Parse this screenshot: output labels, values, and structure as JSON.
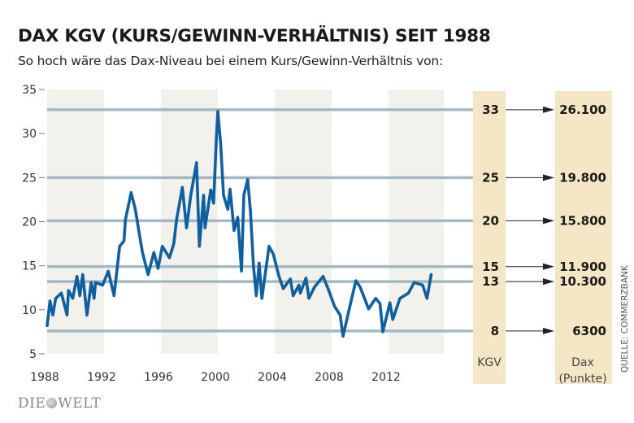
{
  "chart_data": {
    "type": "line",
    "title": "DAX KGV (KURS/GEWINN-VERHÄLTNIS) SEIT 1988",
    "subtitle": "So hoch wäre das Dax-Niveau bei einem Kurs/Gewinn-Verhältnis von:",
    "xlim": [
      1988,
      2016
    ],
    "ylim": [
      5,
      35
    ],
    "yticks": [
      35,
      30,
      25,
      20,
      15,
      10,
      5
    ],
    "xticks": [
      1988,
      1992,
      1996,
      2000,
      2004,
      2008,
      2012
    ],
    "shaded_periods": [
      [
        1988,
        1992
      ],
      [
        1996,
        2000
      ],
      [
        2004,
        2008
      ],
      [
        2012,
        2015.9
      ]
    ],
    "series": [
      {
        "name": "DAX KGV",
        "color": "#105f9e",
        "points": [
          [
            1988.0,
            8.2
          ],
          [
            1988.2,
            11.0
          ],
          [
            1988.4,
            9.4
          ],
          [
            1988.6,
            11.3
          ],
          [
            1989.0,
            11.9
          ],
          [
            1989.4,
            9.4
          ],
          [
            1989.5,
            12.2
          ],
          [
            1989.8,
            11.3
          ],
          [
            1990.1,
            13.8
          ],
          [
            1990.3,
            11.6
          ],
          [
            1990.5,
            14.0
          ],
          [
            1990.8,
            9.4
          ],
          [
            1991.1,
            13.1
          ],
          [
            1991.3,
            11.3
          ],
          [
            1991.4,
            13.1
          ],
          [
            1991.9,
            12.8
          ],
          [
            1992.3,
            14.4
          ],
          [
            1992.7,
            11.6
          ],
          [
            1993.1,
            17.2
          ],
          [
            1993.4,
            17.8
          ],
          [
            1993.5,
            20.2
          ],
          [
            1993.9,
            23.3
          ],
          [
            1994.2,
            21.4
          ],
          [
            1994.5,
            18.4
          ],
          [
            1994.7,
            16.5
          ],
          [
            1995.1,
            14.0
          ],
          [
            1995.5,
            16.5
          ],
          [
            1995.8,
            14.7
          ],
          [
            1996.1,
            17.2
          ],
          [
            1996.6,
            15.9
          ],
          [
            1996.9,
            17.5
          ],
          [
            1997.1,
            20.2
          ],
          [
            1997.5,
            23.9
          ],
          [
            1997.8,
            19.3
          ],
          [
            1998.1,
            23.0
          ],
          [
            1998.5,
            26.7
          ],
          [
            1998.7,
            17.2
          ],
          [
            1999.0,
            23.0
          ],
          [
            1999.1,
            19.3
          ],
          [
            1999.5,
            23.6
          ],
          [
            1999.7,
            22.1
          ],
          [
            1999.9,
            29.7
          ],
          [
            2000.0,
            32.5
          ],
          [
            2000.2,
            28.8
          ],
          [
            2000.4,
            23.0
          ],
          [
            2000.7,
            21.4
          ],
          [
            2000.86,
            23.7
          ],
          [
            2001.14,
            19.0
          ],
          [
            2001.4,
            20.5
          ],
          [
            2001.66,
            14.4
          ],
          [
            2001.83,
            23.0
          ],
          [
            2002.1,
            24.8
          ],
          [
            2002.3,
            21.1
          ],
          [
            2002.5,
            15.0
          ],
          [
            2002.7,
            11.6
          ],
          [
            2002.9,
            15.3
          ],
          [
            2003.1,
            11.3
          ],
          [
            2003.6,
            17.2
          ],
          [
            2003.9,
            16.3
          ],
          [
            2004.3,
            13.8
          ],
          [
            2004.6,
            12.4
          ],
          [
            2005.1,
            13.5
          ],
          [
            2005.3,
            11.6
          ],
          [
            2005.7,
            12.8
          ],
          [
            2005.8,
            11.9
          ],
          [
            2006.2,
            13.6
          ],
          [
            2006.4,
            11.3
          ],
          [
            2006.8,
            12.6
          ],
          [
            2007.4,
            13.8
          ],
          [
            2007.8,
            12.2
          ],
          [
            2008.2,
            10.4
          ],
          [
            2008.6,
            9.4
          ],
          [
            2008.8,
            7.0
          ],
          [
            2009.1,
            9.1
          ],
          [
            2009.7,
            13.3
          ],
          [
            2010.0,
            12.6
          ],
          [
            2010.6,
            10.1
          ],
          [
            2011.1,
            11.3
          ],
          [
            2011.4,
            10.7
          ],
          [
            2011.6,
            7.5
          ],
          [
            2012.1,
            10.8
          ],
          [
            2012.3,
            8.9
          ],
          [
            2012.8,
            11.3
          ],
          [
            2013.4,
            11.9
          ],
          [
            2013.8,
            13.1
          ],
          [
            2014.4,
            12.8
          ],
          [
            2014.7,
            11.3
          ],
          [
            2015.0,
            14.0
          ]
        ]
      }
    ],
    "reference_levels": [
      {
        "level": 32.7,
        "kgv": "33",
        "dax": "26.100"
      },
      {
        "level": 25.0,
        "kgv": "25",
        "dax": "19.800"
      },
      {
        "level": 20.1,
        "kgv": "20",
        "dax": "15.800"
      },
      {
        "level": 14.9,
        "kgv": "15",
        "dax": "11.900"
      },
      {
        "level": 13.2,
        "kgv": "13",
        "dax": "10.300"
      },
      {
        "level": 7.6,
        "kgv": "8",
        "dax": "6300"
      }
    ],
    "kgv_column_label": "KGV",
    "dax_column_label": "Dax",
    "dax_column_unit": "(Punkte)",
    "source": "QUELLE: COMMERZBANK",
    "colors": {
      "line": "#105f9e",
      "guide": "#a3b9c4",
      "band": "#f3f1ec",
      "column": "#f5e6c6"
    }
  },
  "branding": {
    "logo_left": "DIE",
    "logo_right": "WELT"
  }
}
